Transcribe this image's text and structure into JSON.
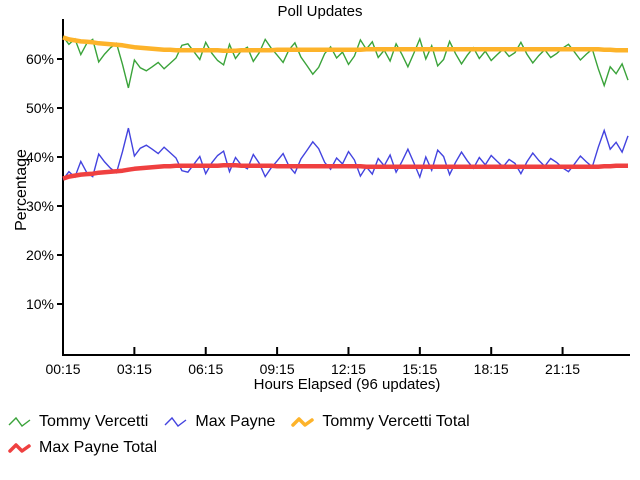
{
  "title": "Poll Updates",
  "x_axis": {
    "label": "Hours Elapsed (96 updates)",
    "ticks": [
      "00:15",
      "03:15",
      "06:15",
      "09:15",
      "12:15",
      "15:15",
      "18:15",
      "21:15"
    ]
  },
  "y_axis": {
    "label": "Percentage",
    "ticks": [
      "10%",
      "20%",
      "30%",
      "40%",
      "50%",
      "60%"
    ]
  },
  "legend": {
    "items": [
      {
        "label": "Tommy Vercetti"
      },
      {
        "label": "Max Payne"
      },
      {
        "label": "Tommy Vercetti Total"
      },
      {
        "label": "Max Payne Total"
      }
    ]
  },
  "colors": {
    "tommy_vercetti": "#3aa33a",
    "max_payne": "#4343df",
    "tommy_vercetti_total": "#fdb32a",
    "max_payne_total": "#ef4040",
    "axis": "#000000",
    "background": "#ffffff"
  },
  "chart_data": {
    "type": "line",
    "title": "Poll Updates",
    "xlabel": "Hours Elapsed (96 updates)",
    "ylabel": "Percentage",
    "x_tick_labels": [
      "00:15",
      "03:15",
      "06:15",
      "09:15",
      "12:15",
      "15:15",
      "18:15",
      "21:15"
    ],
    "x_ticks_every_n_updates": 12,
    "y_tick_labels": [
      "10%",
      "20%",
      "30%",
      "40%",
      "50%",
      "60%"
    ],
    "y_tick_values": [
      10,
      20,
      30,
      40,
      50,
      60
    ],
    "ylim": [
      0,
      68
    ],
    "updates": 96,
    "grid": false,
    "legend_position": "bottom",
    "series": [
      {
        "name": "Tommy Vercetti",
        "color": "#3aa33a",
        "style": "thin",
        "values": [
          64.6,
          63.0,
          64.1,
          60.9,
          63.2,
          64.0,
          59.4,
          61.0,
          62.3,
          63.2,
          58.9,
          54.1,
          59.8,
          58.2,
          57.6,
          58.4,
          59.3,
          58.0,
          59.1,
          60.2,
          62.8,
          63.1,
          61.5,
          59.9,
          63.4,
          61.2,
          59.7,
          58.8,
          63.0,
          60.1,
          61.7,
          62.4,
          59.5,
          61.3,
          64.0,
          62.2,
          60.8,
          59.3,
          61.9,
          63.3,
          60.4,
          58.7,
          56.9,
          58.3,
          61.1,
          62.5,
          60.2,
          61.4,
          58.9,
          60.6,
          63.9,
          62.0,
          63.5,
          60.3,
          61.8,
          59.6,
          63.1,
          60.9,
          58.4,
          61.2,
          64.1,
          60.0,
          62.7,
          58.6,
          59.9,
          63.6,
          61.1,
          59.0,
          60.8,
          62.3,
          60.1,
          61.6,
          59.7,
          60.9,
          62.0,
          60.5,
          61.3,
          63.4,
          61.0,
          59.2,
          60.7,
          61.9,
          60.3,
          61.1,
          62.2,
          63.0,
          61.4,
          59.8,
          61.0,
          62.0,
          58.0,
          54.6,
          58.4,
          57.0,
          59.0,
          55.7
        ]
      },
      {
        "name": "Max Payne",
        "color": "#4343df",
        "style": "thin",
        "values": [
          35.4,
          37.0,
          35.9,
          39.1,
          36.8,
          36.0,
          40.6,
          39.0,
          37.7,
          36.8,
          41.1,
          45.9,
          40.2,
          41.8,
          42.4,
          41.6,
          40.7,
          42.0,
          40.9,
          39.8,
          37.2,
          36.9,
          38.5,
          40.1,
          36.6,
          38.8,
          40.3,
          41.2,
          37.0,
          39.9,
          38.3,
          37.6,
          40.5,
          38.7,
          36.0,
          37.8,
          39.2,
          40.7,
          38.1,
          36.7,
          39.6,
          41.3,
          43.1,
          41.7,
          38.9,
          37.5,
          39.8,
          38.6,
          41.1,
          39.4,
          36.1,
          38.0,
          36.5,
          39.7,
          38.2,
          40.4,
          36.9,
          39.1,
          41.6,
          38.8,
          35.9,
          40.0,
          37.3,
          41.4,
          40.1,
          36.4,
          38.9,
          41.0,
          39.2,
          37.7,
          39.9,
          38.4,
          40.3,
          39.1,
          38.0,
          39.5,
          38.7,
          36.6,
          39.0,
          40.8,
          39.3,
          38.1,
          39.7,
          38.9,
          37.8,
          37.0,
          38.6,
          40.2,
          39.0,
          38.0,
          42.0,
          45.4,
          41.6,
          43.0,
          41.0,
          44.3
        ]
      },
      {
        "name": "Tommy Vercetti Total",
        "color": "#fdb32a",
        "style": "thick",
        "values": [
          64.4,
          64.0,
          63.8,
          63.6,
          63.5,
          63.4,
          63.2,
          63.1,
          63.0,
          62.9,
          62.8,
          62.6,
          62.4,
          62.3,
          62.2,
          62.1,
          62.0,
          61.9,
          61.9,
          61.8,
          61.8,
          61.8,
          61.8,
          61.8,
          61.8,
          61.8,
          61.8,
          61.7,
          61.7,
          61.7,
          61.8,
          61.8,
          61.8,
          61.8,
          61.8,
          61.8,
          61.9,
          61.9,
          61.9,
          61.9,
          61.9,
          61.9,
          61.9,
          61.9,
          61.9,
          61.9,
          61.9,
          61.9,
          61.9,
          61.9,
          61.9,
          62.0,
          62.0,
          62.0,
          62.0,
          62.0,
          62.0,
          62.0,
          62.0,
          62.0,
          62.0,
          62.0,
          62.0,
          62.0,
          62.0,
          62.0,
          62.0,
          62.0,
          62.0,
          62.0,
          62.0,
          62.0,
          62.0,
          62.0,
          62.0,
          62.0,
          62.0,
          62.0,
          62.0,
          62.0,
          62.0,
          62.0,
          62.0,
          62.0,
          62.0,
          62.0,
          62.0,
          62.0,
          62.0,
          62.0,
          62.0,
          61.9,
          61.9,
          61.8,
          61.8,
          61.8
        ]
      },
      {
        "name": "Max Payne Total",
        "color": "#ef4040",
        "style": "thick",
        "values": [
          35.6,
          36.0,
          36.2,
          36.4,
          36.5,
          36.6,
          36.8,
          36.9,
          37.0,
          37.1,
          37.2,
          37.4,
          37.6,
          37.7,
          37.8,
          37.9,
          38.0,
          38.1,
          38.1,
          38.2,
          38.2,
          38.2,
          38.2,
          38.2,
          38.2,
          38.2,
          38.2,
          38.3,
          38.3,
          38.3,
          38.2,
          38.2,
          38.2,
          38.2,
          38.2,
          38.2,
          38.1,
          38.1,
          38.1,
          38.1,
          38.1,
          38.1,
          38.1,
          38.1,
          38.1,
          38.1,
          38.1,
          38.1,
          38.1,
          38.1,
          38.1,
          38.0,
          38.0,
          38.0,
          38.0,
          38.0,
          38.0,
          38.0,
          38.0,
          38.0,
          38.0,
          38.0,
          38.0,
          38.0,
          38.0,
          38.0,
          38.0,
          38.0,
          38.0,
          38.0,
          38.0,
          38.0,
          38.0,
          38.0,
          38.0,
          38.0,
          38.0,
          38.0,
          38.0,
          38.0,
          38.0,
          38.0,
          38.0,
          38.0,
          38.0,
          38.0,
          38.0,
          38.0,
          38.0,
          38.0,
          38.0,
          38.1,
          38.1,
          38.2,
          38.2,
          38.2
        ]
      }
    ]
  }
}
